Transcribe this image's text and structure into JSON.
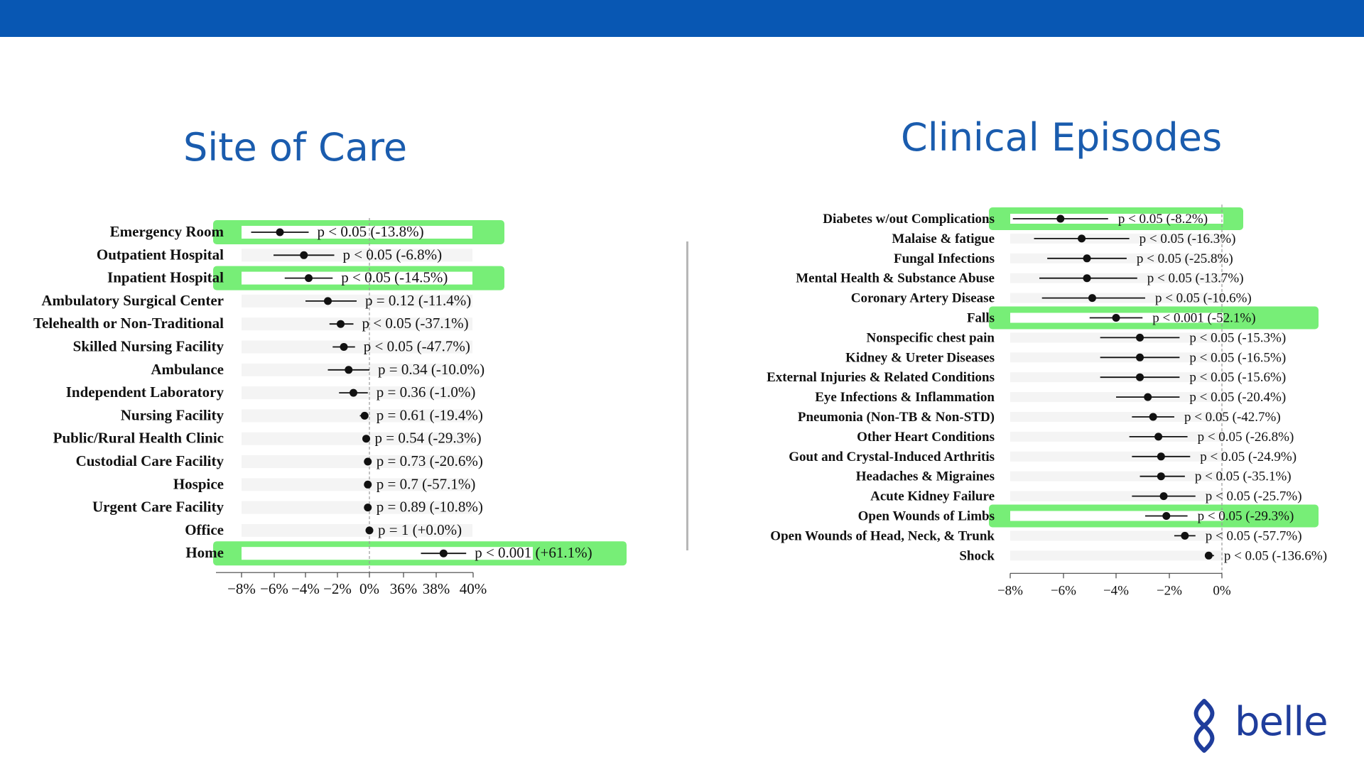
{
  "page": {
    "left_title": "Site of Care",
    "right_title": "Clinical Episodes",
    "logo_text": "belle",
    "brand_color": "#0857b3",
    "title_color": "#1a5cae",
    "highlight_color": "#77ee77",
    "logo_icon": "belle-logo-icon"
  },
  "chart_data": [
    {
      "type": "forest",
      "title": "Site of Care",
      "axis": {
        "ticks": [
          "−8%",
          "−6%",
          "−4%",
          "−2%",
          "0%",
          "36%",
          "38%",
          "40%"
        ],
        "break_between": [
          "0%",
          "36%"
        ]
      },
      "rows": [
        {
          "label": "Emergency Room",
          "estimate": -5.6,
          "low": -7.4,
          "high": -3.8,
          "annotation": "p < 0.05 (-13.8%)",
          "highlight": true
        },
        {
          "label": "Outpatient Hospital",
          "estimate": -4.1,
          "low": -6.0,
          "high": -2.2,
          "annotation": "p < 0.05 (-6.8%)",
          "highlight": false
        },
        {
          "label": "Inpatient Hospital",
          "estimate": -3.8,
          "low": -5.3,
          "high": -2.3,
          "annotation": "p < 0.05 (-14.5%)",
          "highlight": true
        },
        {
          "label": "Ambulatory Surgical Center",
          "estimate": -2.6,
          "low": -4.0,
          "high": -0.8,
          "annotation": "p = 0.12 (-11.4%)",
          "highlight": false
        },
        {
          "label": "Telehealth or Non-Traditional",
          "estimate": -1.8,
          "low": -2.5,
          "high": -1.0,
          "annotation": "p < 0.05 (-37.1%)",
          "highlight": false
        },
        {
          "label": "Skilled Nursing Facility",
          "estimate": -1.6,
          "low": -2.3,
          "high": -0.9,
          "annotation": "p < 0.05 (-47.7%)",
          "highlight": false
        },
        {
          "label": "Ambulance",
          "estimate": -1.3,
          "low": -2.6,
          "high": 0.0,
          "annotation": "p = 0.34 (-10.0%)",
          "highlight": false
        },
        {
          "label": "Independent Laboratory",
          "estimate": -1.0,
          "low": -1.9,
          "high": -0.1,
          "annotation": "p = 0.36 (-1.0%)",
          "highlight": false
        },
        {
          "label": "Nursing Facility",
          "estimate": -0.3,
          "low": -0.6,
          "high": -0.1,
          "annotation": "p = 0.61 (-19.4%)",
          "highlight": false
        },
        {
          "label": "Public/Rural Health Clinic",
          "estimate": -0.2,
          "low": -0.2,
          "high": -0.2,
          "annotation": "p = 0.54 (-29.3%)",
          "highlight": false
        },
        {
          "label": "Custodial Care Facility",
          "estimate": -0.1,
          "low": -0.1,
          "high": -0.1,
          "annotation": "p = 0.73 (-20.6%)",
          "highlight": false
        },
        {
          "label": "Hospice",
          "estimate": -0.1,
          "low": -0.1,
          "high": -0.1,
          "annotation": "p = 0.7 (-57.1%)",
          "highlight": false
        },
        {
          "label": "Urgent Care Facility",
          "estimate": -0.1,
          "low": -0.1,
          "high": -0.1,
          "annotation": "p = 0.89 (-10.8%)",
          "highlight": false
        },
        {
          "label": "Office",
          "estimate": 0.0,
          "low": 0.0,
          "high": 0.0,
          "annotation": "p = 1 (+0.0%)",
          "highlight": false
        },
        {
          "label": "Home",
          "estimate": 38.3,
          "low": 37.0,
          "high": 39.6,
          "annotation": "p < 0.001 (+61.1%)",
          "highlight": true
        }
      ]
    },
    {
      "type": "forest",
      "title": "Clinical Episodes",
      "axis": {
        "ticks": [
          "−8%",
          "−6%",
          "−4%",
          "−2%",
          "0%"
        ],
        "range": [
          -8,
          0
        ]
      },
      "rows": [
        {
          "label": "Diabetes w/out Complications",
          "estimate": -6.1,
          "low": -7.9,
          "high": -4.3,
          "annotation": "p < 0.05 (-8.2%)",
          "highlight": true
        },
        {
          "label": "Malaise & fatigue",
          "estimate": -5.3,
          "low": -7.1,
          "high": -3.5,
          "annotation": "p < 0.05 (-16.3%)",
          "highlight": false
        },
        {
          "label": "Fungal Infections",
          "estimate": -5.1,
          "low": -6.6,
          "high": -3.6,
          "annotation": "p < 0.05 (-25.8%)",
          "highlight": false
        },
        {
          "label": "Mental Health & Substance Abuse",
          "estimate": -5.1,
          "low": -6.9,
          "high": -3.2,
          "annotation": "p < 0.05 (-13.7%)",
          "highlight": false
        },
        {
          "label": "Coronary Artery Disease",
          "estimate": -4.9,
          "low": -6.8,
          "high": -2.9,
          "annotation": "p < 0.05 (-10.6%)",
          "highlight": false
        },
        {
          "label": "Falls",
          "estimate": -4.0,
          "low": -5.0,
          "high": -3.0,
          "annotation": "p < 0.001 (-52.1%)",
          "highlight": true
        },
        {
          "label": "Nonspecific chest pain",
          "estimate": -3.1,
          "low": -4.6,
          "high": -1.6,
          "annotation": "p < 0.05 (-15.3%)",
          "highlight": false
        },
        {
          "label": "Kidney & Ureter Diseases",
          "estimate": -3.1,
          "low": -4.6,
          "high": -1.6,
          "annotation": "p < 0.05 (-16.5%)",
          "highlight": false
        },
        {
          "label": "External Injuries & Related Conditions",
          "estimate": -3.1,
          "low": -4.6,
          "high": -1.6,
          "annotation": "p < 0.05 (-15.6%)",
          "highlight": false
        },
        {
          "label": "Eye Infections & Inflammation",
          "estimate": -2.8,
          "low": -4.0,
          "high": -1.6,
          "annotation": "p < 0.05 (-20.4%)",
          "highlight": false
        },
        {
          "label": "Pneumonia (Non-TB & Non-STD)",
          "estimate": -2.6,
          "low": -3.4,
          "high": -1.8,
          "annotation": "p < 0.05 (-42.7%)",
          "highlight": false
        },
        {
          "label": "Other Heart Conditions",
          "estimate": -2.4,
          "low": -3.5,
          "high": -1.3,
          "annotation": "p < 0.05 (-26.8%)",
          "highlight": false
        },
        {
          "label": "Gout and Crystal-Induced Arthritis",
          "estimate": -2.3,
          "low": -3.4,
          "high": -1.2,
          "annotation": "p < 0.05 (-24.9%)",
          "highlight": false
        },
        {
          "label": "Headaches & Migraines",
          "estimate": -2.3,
          "low": -3.1,
          "high": -1.4,
          "annotation": "p < 0.05 (-35.1%)",
          "highlight": false
        },
        {
          "label": "Acute Kidney Failure",
          "estimate": -2.2,
          "low": -3.4,
          "high": -1.0,
          "annotation": "p < 0.05 (-25.7%)",
          "highlight": false
        },
        {
          "label": "Open Wounds of Limbs",
          "estimate": -2.1,
          "low": -2.9,
          "high": -1.3,
          "annotation": "p < 0.05 (-29.3%)",
          "highlight": true
        },
        {
          "label": "Open Wounds of Head, Neck, & Trunk",
          "estimate": -1.4,
          "low": -1.8,
          "high": -1.0,
          "annotation": "p < 0.05 (-57.7%)",
          "highlight": false
        },
        {
          "label": "Shock",
          "estimate": -0.5,
          "low": -0.6,
          "high": -0.3,
          "annotation": "p < 0.05 (-136.6%)",
          "highlight": false
        }
      ]
    }
  ]
}
